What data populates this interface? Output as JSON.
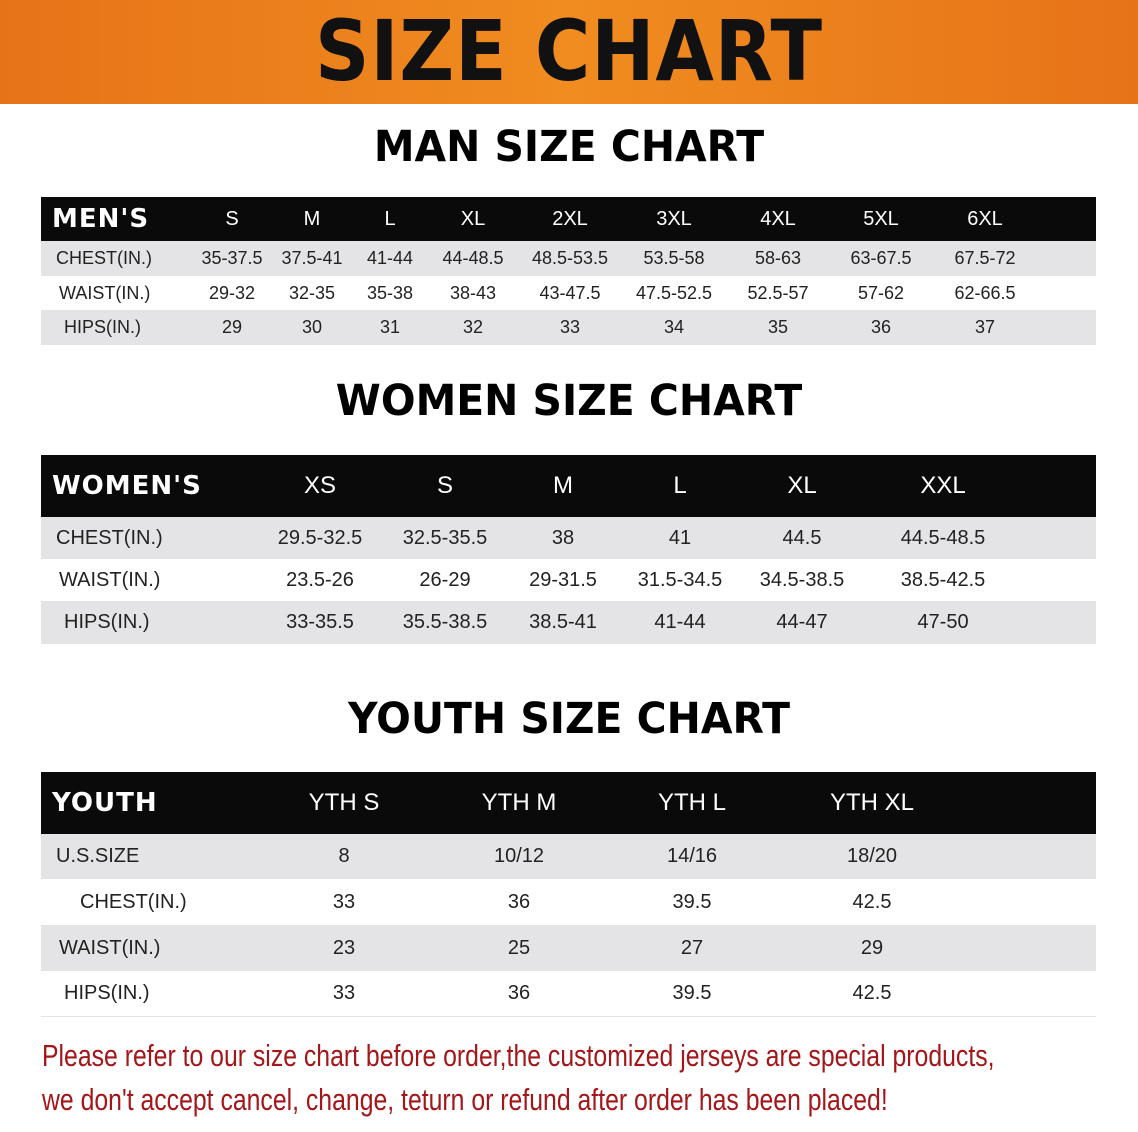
{
  "banner": {
    "title": "SIZE CHART",
    "color": "#ee8420"
  },
  "men": {
    "title": "MAN SIZE CHART",
    "header": [
      "MEN'S",
      "S",
      "M",
      "L",
      "XL",
      "2XL",
      "3XL",
      "4XL",
      "5XL",
      "6XL"
    ],
    "rows": [
      [
        "CHEST(IN.)",
        "35-37.5",
        "37.5-41",
        "41-44",
        "44-48.5",
        "48.5-53.5",
        "53.5-58",
        "58-63",
        "63-67.5",
        "67.5-72"
      ],
      [
        "WAIST(IN.)",
        "29-32",
        "32-35",
        "35-38",
        "38-43",
        "43-47.5",
        "47.5-52.5",
        "52.5-57",
        "57-62",
        "62-66.5"
      ],
      [
        "HIPS(IN.)",
        "29",
        "30",
        "31",
        "32",
        "33",
        "34",
        "35",
        "36",
        "37"
      ]
    ]
  },
  "women": {
    "title": "WOMEN SIZE CHART",
    "header": [
      "WOMEN'S",
      "XS",
      "S",
      "M",
      "L",
      "XL",
      "XXL"
    ],
    "rows": [
      [
        "CHEST(IN.)",
        "29.5-32.5",
        "32.5-35.5",
        "38",
        "41",
        "44.5",
        "44.5-48.5"
      ],
      [
        "WAIST(IN.)",
        "23.5-26",
        "26-29",
        "29-31.5",
        "31.5-34.5",
        "34.5-38.5",
        "38.5-42.5"
      ],
      [
        "HIPS(IN.)",
        "33-35.5",
        "35.5-38.5",
        "38.5-41",
        "41-44",
        "44-47",
        "47-50"
      ]
    ]
  },
  "youth": {
    "title": "YOUTH SIZE CHART",
    "header": [
      "YOUTH",
      "YTH S",
      "YTH M",
      "YTH L",
      "YTH XL"
    ],
    "rows": [
      [
        "U.S.SIZE",
        "8",
        "10/12",
        "14/16",
        "18/20"
      ],
      [
        "CHEST(IN.)",
        "33",
        "36",
        "39.5",
        "42.5"
      ],
      [
        "WAIST(IN.)",
        "23",
        "25",
        "27",
        "29"
      ],
      [
        "HIPS(IN.)",
        "33",
        "36",
        "39.5",
        "42.5"
      ]
    ]
  },
  "note": {
    "line1": "Please refer to our size chart before order,the customized jerseys are special products,",
    "line2": "we don't accept cancel, change, teturn or refund after order has been placed!",
    "color": "#a3161a"
  }
}
